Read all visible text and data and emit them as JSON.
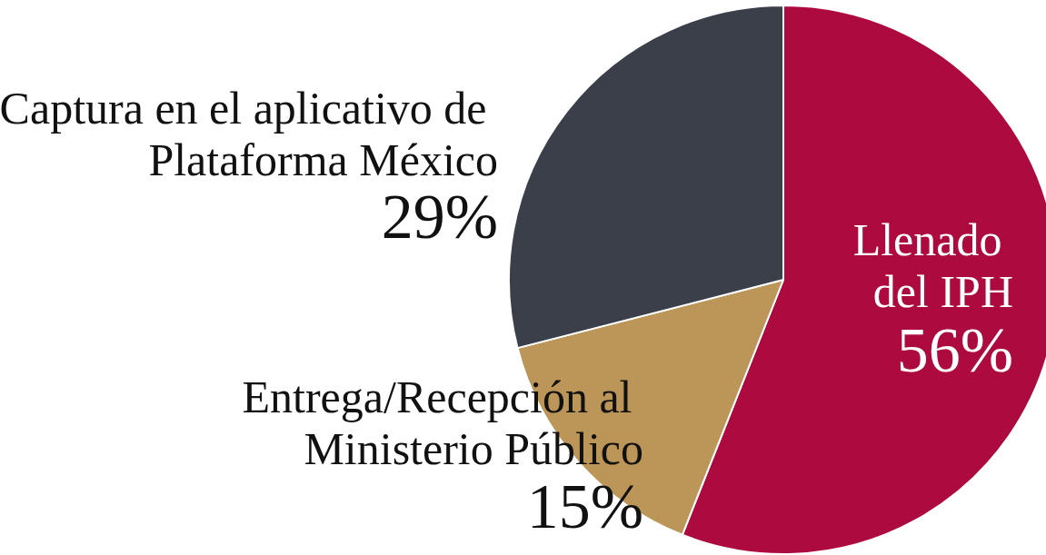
{
  "chart_data": {
    "type": "pie",
    "categories": [
      "Llenado del IPH",
      "Entrega/Recepción al Ministerio Público",
      "Captura en el aplicativo de Plataforma México"
    ],
    "values": [
      56,
      15,
      29
    ],
    "colors": [
      "#ad0a3f",
      "#bb9658",
      "#3a3f4a"
    ],
    "value_labels": [
      "56%",
      "15%",
      "29%"
    ]
  }
}
